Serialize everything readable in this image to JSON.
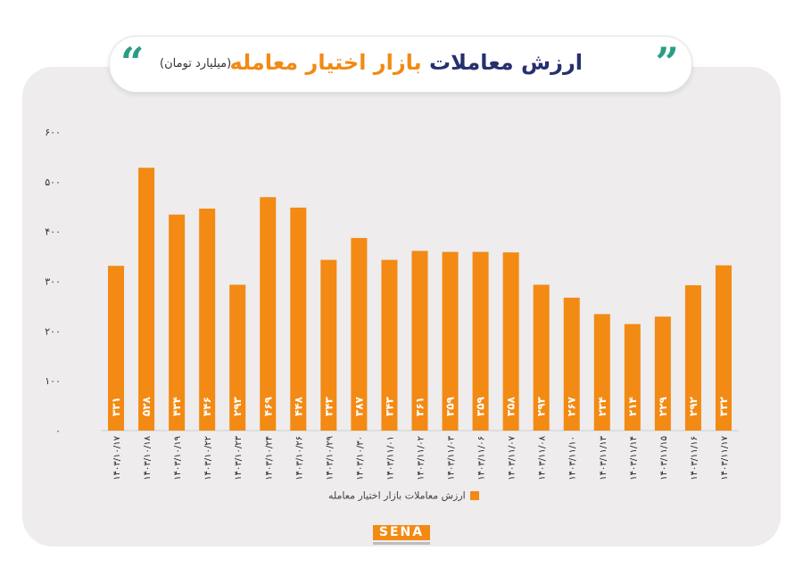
{
  "header": {
    "title_main": "ارزش معاملات",
    "title_accent": "بازار اختیار معامله",
    "subtitle": "(میلیارد تومان)"
  },
  "logo": {
    "text": "SENA"
  },
  "colors": {
    "bar": "#f28a14",
    "title_main": "#27306e",
    "quote": "#2b9c86",
    "panel": "#eeeced"
  },
  "chart_data": {
    "type": "bar",
    "categories": [
      "۱۴۰۳/۱۰/۱۷",
      "۱۴۰۳/۱۰/۱۸",
      "۱۴۰۳/۱۰/۱۹",
      "۱۴۰۳/۱۰/۲۲",
      "۱۴۰۳/۱۰/۲۳",
      "۱۴۰۳/۱۰/۲۴",
      "۱۴۰۳/۱۰/۲۶",
      "۱۴۰۳/۱۰/۲۹",
      "۱۴۰۳/۱۰/۳۰",
      "۱۴۰۳/۱۱/۰۱",
      "۱۴۰۳/۱۱/۰۲",
      "۱۴۰۳/۱۱/۰۳",
      "۱۴۰۳/۱۱/۰۶",
      "۱۴۰۳/۱۱/۰۷",
      "۱۴۰۳/۱۱/۰۸",
      "۱۴۰۳/۱۱/۱۰",
      "۱۴۰۳/۱۱/۱۳",
      "۱۴۰۳/۱۱/۱۴",
      "۱۴۰۳/۱۱/۱۵",
      "۱۴۰۳/۱۱/۱۶",
      "۱۴۰۳/۱۱/۱۷"
    ],
    "values": [
      331,
      528,
      434,
      446,
      293,
      469,
      448,
      343,
      387,
      343,
      361,
      359,
      359,
      358,
      293,
      267,
      234,
      214,
      229,
      292,
      332
    ],
    "value_labels": [
      "۳۳۱",
      "۵۲۸",
      "۴۳۴",
      "۴۴۶",
      "۲۹۳",
      "۴۶۹",
      "۴۴۸",
      "۳۴۳",
      "۳۸۷",
      "۳۴۳",
      "۳۶۱",
      "۳۵۹",
      "۳۵۹",
      "۳۵۸",
      "۲۹۳",
      "۲۶۷",
      "۲۳۴",
      "۲۱۴",
      "۲۲۹",
      "۲۹۲",
      "۳۳۲"
    ],
    "y_ticks": [
      0,
      100,
      200,
      300,
      400,
      500,
      600
    ],
    "y_tick_labels": [
      "۰",
      "۱۰۰",
      "۲۰۰",
      "۳۰۰",
      "۴۰۰",
      "۵۰۰",
      "۶۰۰"
    ],
    "ylim": [
      0,
      600
    ],
    "grid": false,
    "legend": {
      "label": "ارزش معاملات بازار اختیار معامله",
      "position": "bottom"
    }
  }
}
